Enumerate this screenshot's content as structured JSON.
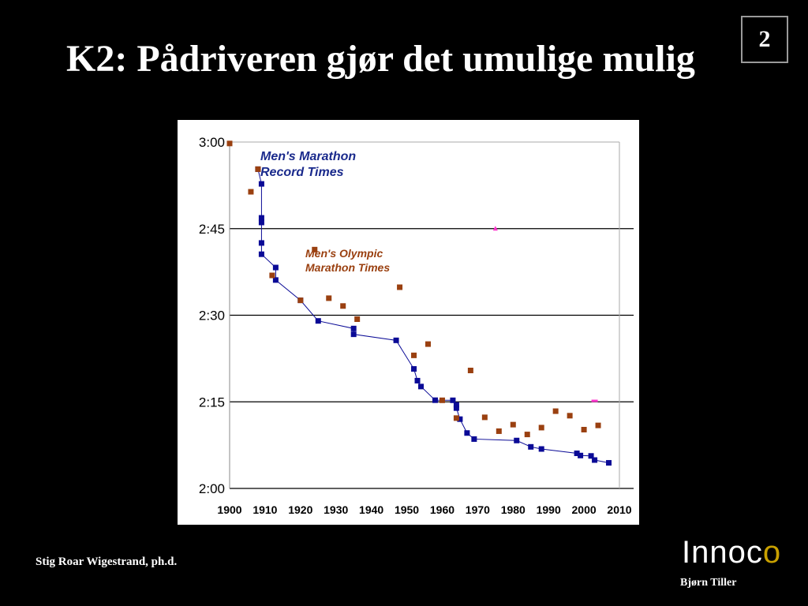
{
  "slide": {
    "title": "K2: Pådriveren gjør det umulige mulig",
    "page_number": "2",
    "author": "Stig Roar Wigestrand, ph.d.",
    "logo_text": "Innoco",
    "logo_subtitle": "Bjørn Tiller",
    "colors": {
      "background": "#000000",
      "record_series": "#0a0a96",
      "olympic_series": "#9a4010",
      "annotation": "#ff33cc"
    }
  },
  "chart_data": {
    "type": "scatter",
    "title": "",
    "xlabel": "",
    "ylabel": "",
    "xlim": [
      1900,
      2010
    ],
    "ylim": [
      "2:00",
      "3:00"
    ],
    "x_ticks": [
      "1900",
      "1910",
      "1920",
      "1930",
      "1940",
      "1950",
      "1960",
      "1970",
      "1980",
      "1990",
      "2000",
      "2010"
    ],
    "y_ticks": [
      "3:00",
      "2:45",
      "2:30",
      "2:15",
      "2:00"
    ],
    "grid": "horizontal",
    "annotations": [
      "Men's Marathon\nRecord Times",
      "Men's Olympic\nMarathon Times"
    ],
    "series": [
      {
        "name": "Men's Marathon Record Times",
        "style": "line+square",
        "color": "#0a0a96",
        "points": [
          [
            "1908",
            "2:55:18"
          ],
          [
            "1909",
            "2:52:45"
          ],
          [
            "1909",
            "2:46:52"
          ],
          [
            "1909",
            "2:46:04"
          ],
          [
            "1909",
            "2:42:31"
          ],
          [
            "1909",
            "2:40:34"
          ],
          [
            "1913",
            "2:38:16"
          ],
          [
            "1913",
            "2:36:06"
          ],
          [
            "1920",
            "2:32:35"
          ],
          [
            "1925",
            "2:29:01"
          ],
          [
            "1935",
            "2:27:42"
          ],
          [
            "1935",
            "2:26:42"
          ],
          [
            "1947",
            "2:25:39"
          ],
          [
            "1952",
            "2:20:42"
          ],
          [
            "1953",
            "2:18:40"
          ],
          [
            "1954",
            "2:17:39"
          ],
          [
            "1958",
            "2:15:17"
          ],
          [
            "1963",
            "2:15:16"
          ],
          [
            "1964",
            "2:14:28"
          ],
          [
            "1964",
            "2:13:55"
          ],
          [
            "1965",
            "2:12:00"
          ],
          [
            "1967",
            "2:09:36"
          ],
          [
            "1969",
            "2:08:33"
          ],
          [
            "1981",
            "2:08:18"
          ],
          [
            "1985",
            "2:07:12"
          ],
          [
            "1988",
            "2:06:50"
          ],
          [
            "1998",
            "2:06:05"
          ],
          [
            "1999",
            "2:05:42"
          ],
          [
            "2002",
            "2:05:38"
          ],
          [
            "2003",
            "2:04:55"
          ],
          [
            "2007",
            "2:04:26"
          ]
        ]
      },
      {
        "name": "Men's Olympic Marathon Times",
        "style": "square",
        "color": "#9a4010",
        "points": [
          [
            "1900",
            "2:59:45"
          ],
          [
            "1906",
            "2:51:23"
          ],
          [
            "1908",
            "2:55:18"
          ],
          [
            "1912",
            "2:36:54"
          ],
          [
            "1920",
            "2:32:35"
          ],
          [
            "1924",
            "2:41:22"
          ],
          [
            "1928",
            "2:32:57"
          ],
          [
            "1932",
            "2:31:36"
          ],
          [
            "1936",
            "2:29:19"
          ],
          [
            "1948",
            "2:34:51"
          ],
          [
            "1952",
            "2:23:03"
          ],
          [
            "1956",
            "2:25:00"
          ],
          [
            "1960",
            "2:15:16"
          ],
          [
            "1964",
            "2:12:11"
          ],
          [
            "1968",
            "2:20:26"
          ],
          [
            "1972",
            "2:12:19"
          ],
          [
            "1976",
            "2:09:55"
          ],
          [
            "1980",
            "2:11:03"
          ],
          [
            "1984",
            "2:09:21"
          ],
          [
            "1988",
            "2:10:32"
          ],
          [
            "1992",
            "2:13:23"
          ],
          [
            "1996",
            "2:12:36"
          ],
          [
            "2000",
            "2:10:11"
          ],
          [
            "2004",
            "2:10:55"
          ]
        ]
      }
    ]
  }
}
